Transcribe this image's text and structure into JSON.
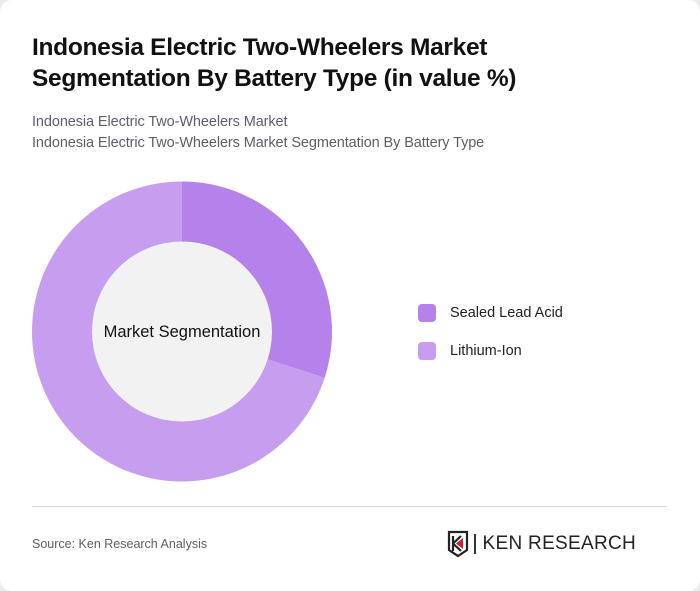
{
  "header": {
    "title": "Indonesia Electric Two-Wheelers Market Segmentation By Battery Type (in value %)",
    "subtitle_line1": "Indonesia Electric Two-Wheelers Market",
    "subtitle_line2": "Indonesia Electric Two-Wheelers Market Segmentation By Battery Type"
  },
  "chart_data": {
    "type": "pie",
    "variant": "donut",
    "title": "Indonesia Electric Two-Wheelers Market Segmentation By Battery Type (in value %)",
    "center_label": "Market Segmentation",
    "categories": [
      "Sealed Lead Acid",
      "Lithium-Ion"
    ],
    "values": [
      30,
      70
    ],
    "colors": [
      "#b482ea",
      "#c79df0"
    ],
    "legend_position": "right",
    "start_angle": "12 o'clock, clockwise"
  },
  "legend": {
    "items": [
      {
        "label": "Sealed Lead Acid",
        "color": "#b482ea"
      },
      {
        "label": "Lithium-Ion",
        "color": "#c79df0"
      }
    ]
  },
  "footer": {
    "source": "Source: Ken Research Analysis",
    "logo_text": "KEN RESEARCH",
    "logo_accent": "#d0202a"
  }
}
